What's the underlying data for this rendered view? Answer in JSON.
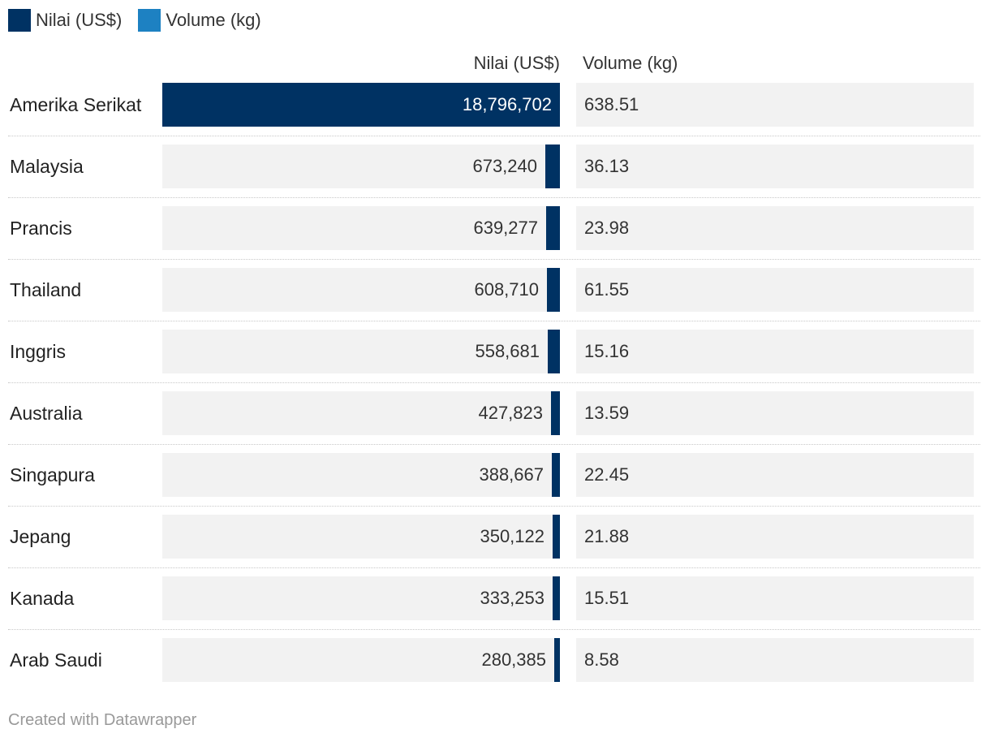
{
  "legend": [
    {
      "label": "Nilai (US$)",
      "color": "#003263"
    },
    {
      "label": "Volume (kg)",
      "color": "#1d81c2"
    }
  ],
  "columns": {
    "nilai": "Nilai (US$)",
    "volume": "Volume (kg)"
  },
  "chart_data": {
    "type": "bar",
    "orientation": "horizontal",
    "categories": [
      "Amerika Serikat",
      "Malaysia",
      "Prancis",
      "Thailand",
      "Inggris",
      "Australia",
      "Singapura",
      "Jepang",
      "Kanada",
      "Arab Saudi"
    ],
    "series": [
      {
        "name": "Nilai (US$)",
        "values": [
          18796702,
          673240,
          639277,
          608710,
          558681,
          427823,
          388667,
          350122,
          333253,
          280385
        ],
        "labels": [
          "18,796,702",
          "673,240",
          "639,277",
          "608,710",
          "558,681",
          "427,823",
          "388,667",
          "350,122",
          "333,253",
          "280,385"
        ],
        "color": "#003263"
      },
      {
        "name": "Volume (kg)",
        "values": [
          638.51,
          36.13,
          23.98,
          61.55,
          15.16,
          13.59,
          22.45,
          21.88,
          15.51,
          8.58
        ],
        "labels": [
          "638.51",
          "36.13",
          "23.98",
          "61.55",
          "15.16",
          "13.59",
          "22.45",
          "21.88",
          "15.51",
          "8.58"
        ],
        "color": "#1d81c2"
      }
    ],
    "xlim": [
      0,
      18796702
    ]
  },
  "footer": "Created with Datawrapper"
}
